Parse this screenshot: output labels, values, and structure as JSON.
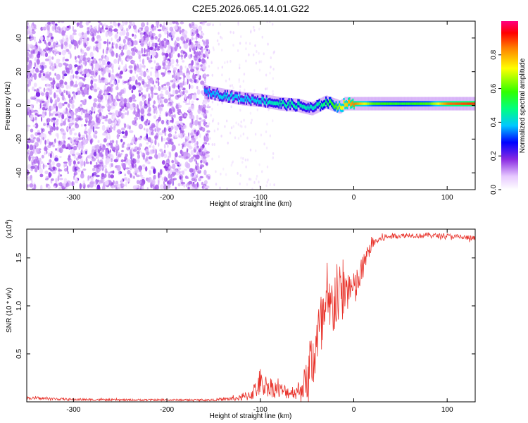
{
  "title": "C2E5.2026.065.14.01.G22",
  "colors": {
    "snr_line": "#e8322a",
    "spec_low": "#cdb0ff",
    "spec_mid": "#6a1cf0",
    "spec_high": "#ff0000",
    "background": "#ffffff"
  },
  "chart_data": [
    {
      "type": "heatmap",
      "title": "C2E5.2026.065.14.01.G22",
      "xlabel": "Height of straight line (km)",
      "ylabel": "Frequency (Hz)",
      "xlim": [
        -350,
        130
      ],
      "ylim": [
        -50,
        50
      ],
      "xticks": [
        -300,
        -200,
        -100,
        0,
        100
      ],
      "xtick_labels": [
        "-300",
        "-200",
        "-100",
        "0",
        "100"
      ],
      "yticks": [
        -40,
        -20,
        0,
        20,
        40
      ],
      "ytick_labels": [
        "-40",
        "-20",
        "0",
        "20",
        "40"
      ],
      "colorbar": {
        "label": "Normalized spectral amplitude",
        "range": [
          0,
          1
        ],
        "ticks": [
          0.0,
          0.2,
          0.4,
          0.6,
          0.8
        ],
        "tick_labels": [
          "0.0",
          "0.2",
          "0.4",
          "0.6",
          "0.8"
        ]
      },
      "main_tone": {
        "x": [
          -160,
          -140,
          -120,
          -100,
          -80,
          -60,
          -45,
          -30,
          -20,
          -15,
          -10,
          0,
          20,
          50,
          80,
          100,
          130
        ],
        "freq": [
          8,
          6,
          4,
          3,
          1,
          0,
          -2,
          2,
          0,
          -1,
          1,
          1,
          1,
          1,
          1,
          1,
          1
        ],
        "amplitude": [
          0.35,
          0.4,
          0.38,
          0.4,
          0.45,
          0.45,
          0.42,
          0.5,
          0.6,
          0.7,
          0.75,
          0.85,
          0.6,
          0.55,
          0.6,
          0.85,
          0.9
        ]
      },
      "noise_region_x": [
        -350,
        -155
      ],
      "noise_amplitude_range": [
        0.05,
        0.15
      ]
    },
    {
      "type": "line",
      "xlabel": "Height of straight line (km)",
      "ylabel": "SNR (10 * v/v)",
      "y_multiplier_label": "(x10",
      "y_multiplier_exponent": "4",
      "xlim": [
        -350,
        130
      ],
      "ylim": [
        0,
        18000
      ],
      "xticks": [
        -300,
        -200,
        -100,
        0,
        100
      ],
      "xtick_labels": [
        "-300",
        "-200",
        "-100",
        "0",
        "100"
      ],
      "yticks": [
        5000,
        10000,
        15000
      ],
      "ytick_labels": [
        "0.5",
        "1.0",
        "1.5"
      ],
      "series": [
        {
          "name": "SNR",
          "x": [
            -350,
            -300,
            -250,
            -200,
            -150,
            -120,
            -110,
            -100,
            -90,
            -80,
            -70,
            -60,
            -50,
            -45,
            -40,
            -35,
            -30,
            -25,
            -20,
            -15,
            -10,
            -5,
            0,
            5,
            10,
            15,
            20,
            25,
            30,
            40,
            50,
            60,
            70,
            80,
            90,
            100,
            110,
            120,
            130
          ],
          "y": [
            400,
            250,
            200,
            200,
            200,
            400,
            800,
            1800,
            1600,
            1200,
            1000,
            1100,
            2000,
            4200,
            6000,
            7500,
            9000,
            9500,
            10500,
            11000,
            11500,
            12000,
            11500,
            12500,
            14000,
            15500,
            16500,
            16800,
            17000,
            17300,
            17300,
            17400,
            17300,
            17400,
            17300,
            17300,
            17200,
            17100,
            17000
          ],
          "noise_amplitude": [
            150,
            120,
            100,
            100,
            100,
            300,
            700,
            1200,
            1100,
            900,
            700,
            700,
            1800,
            3500,
            4000,
            4000,
            3800,
            3500,
            3500,
            3200,
            2800,
            2400,
            2000,
            1800,
            1400,
            800,
            600,
            400,
            350,
            300,
            250,
            250,
            250,
            250,
            250,
            250,
            250,
            300,
            300
          ]
        }
      ]
    }
  ]
}
